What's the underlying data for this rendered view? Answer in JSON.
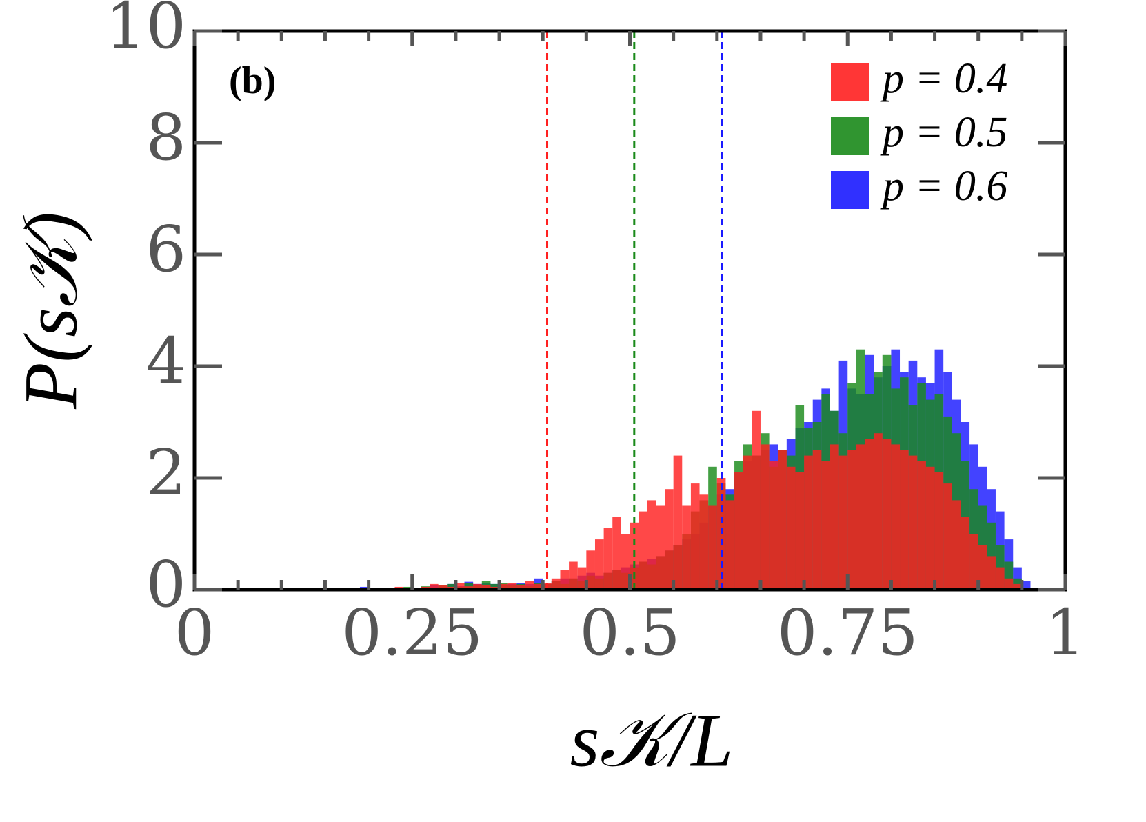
{
  "chart_data": {
    "type": "histogram",
    "annotation": "(b)",
    "xlabel": "s𝒦/L",
    "ylabel": "P(s𝒦)",
    "xlim": [
      0,
      1
    ],
    "ylim": [
      0,
      10
    ],
    "xticks": [
      0,
      0.25,
      0.5,
      0.75,
      1
    ],
    "xticks_minor": [
      0.05,
      0.1,
      0.15,
      0.2,
      0.3,
      0.35,
      0.4,
      0.45,
      0.55,
      0.6,
      0.65,
      0.7,
      0.8,
      0.85,
      0.9,
      0.95
    ],
    "yticks": [
      0,
      2,
      4,
      6,
      8,
      10
    ],
    "legend": "upper right",
    "bins": [
      0.15,
      0.16,
      0.17,
      0.18,
      0.19,
      0.2,
      0.21,
      0.22,
      0.23,
      0.24,
      0.25,
      0.26,
      0.27,
      0.28,
      0.29,
      0.3,
      0.31,
      0.32,
      0.33,
      0.34,
      0.35,
      0.36,
      0.37,
      0.38,
      0.39,
      0.4,
      0.41,
      0.42,
      0.43,
      0.44,
      0.45,
      0.46,
      0.47,
      0.48,
      0.49,
      0.5,
      0.51,
      0.52,
      0.53,
      0.54,
      0.55,
      0.56,
      0.57,
      0.58,
      0.59,
      0.6,
      0.61,
      0.62,
      0.63,
      0.64,
      0.65,
      0.66,
      0.67,
      0.68,
      0.69,
      0.7,
      0.71,
      0.72,
      0.73,
      0.74,
      0.75,
      0.76,
      0.77,
      0.78,
      0.79,
      0.8,
      0.81,
      0.82,
      0.83,
      0.84,
      0.85,
      0.86,
      0.87,
      0.88,
      0.89,
      0.9,
      0.91,
      0.92,
      0.93,
      0.94,
      0.95,
      0.96
    ],
    "series": [
      {
        "name": "p = 0.6",
        "color": "#1a1aff",
        "values": [
          0,
          0,
          0,
          0,
          0.05,
          0,
          0,
          0,
          0.02,
          0,
          0,
          0.04,
          0.08,
          0.05,
          0.1,
          0.06,
          0.14,
          0.1,
          0.12,
          0.1,
          0.08,
          0.1,
          0.12,
          0.1,
          0.2,
          0.1,
          0.15,
          0.2,
          0.2,
          0.25,
          0.3,
          0.25,
          0.3,
          0.35,
          0.4,
          0.45,
          0.5,
          0.55,
          0.6,
          0.7,
          0.8,
          0.9,
          1.0,
          1.2,
          1.5,
          1.7,
          1.8,
          2.1,
          2.3,
          2.4,
          2.5,
          2.6,
          2.5,
          2.7,
          2.9,
          3.0,
          3.4,
          3.6,
          3.2,
          4.1,
          3.6,
          3.5,
          4.2,
          3.8,
          4.0,
          4.3,
          3.9,
          4.1,
          3.8,
          3.7,
          4.3,
          3.9,
          3.4,
          3.0,
          2.6,
          2.2,
          1.8,
          1.4,
          0.9,
          0.4,
          0.15
        ]
      },
      {
        "name": "p = 0.5",
        "color": "#1a8a1a",
        "values": [
          0,
          0,
          0,
          0,
          0,
          0,
          0.02,
          0,
          0.03,
          0.05,
          0.02,
          0.06,
          0.04,
          0.08,
          0.1,
          0.05,
          0.12,
          0.08,
          0.15,
          0.1,
          0.12,
          0.08,
          0.1,
          0.06,
          0.12,
          0.1,
          0.15,
          0.1,
          0.2,
          0.15,
          0.25,
          0.2,
          0.3,
          0.35,
          0.3,
          0.4,
          0.5,
          0.45,
          0.6,
          0.7,
          0.8,
          1.0,
          1.4,
          1.6,
          2.2,
          1.9,
          1.7,
          2.3,
          2.6,
          2.4,
          2.8,
          2.2,
          2.5,
          2.4,
          3.3,
          2.9,
          3.0,
          3.5,
          3.2,
          2.8,
          3.7,
          4.3,
          3.5,
          3.9,
          4.2,
          3.6,
          3.8,
          3.3,
          3.7,
          3.4,
          3.5,
          3.1,
          2.8,
          2.3,
          1.8,
          1.5,
          1.2,
          0.8,
          0.5,
          0.2,
          0
        ]
      },
      {
        "name": "p = 0.4",
        "color": "#ff2020",
        "values": [
          0,
          0,
          0,
          0.02,
          0,
          0,
          0.03,
          0,
          0.05,
          0.02,
          0.03,
          0.05,
          0.1,
          0.08,
          0.05,
          0.12,
          0.06,
          0.1,
          0.08,
          0.05,
          0.1,
          0.12,
          0.08,
          0.15,
          0.1,
          0.12,
          0.2,
          0.35,
          0.5,
          0.4,
          0.7,
          0.9,
          1.1,
          1.3,
          1.0,
          1.2,
          1.4,
          1.6,
          1.5,
          1.8,
          2.4,
          1.5,
          1.9,
          1.7,
          1.5,
          2.0,
          1.6,
          2.1,
          2.4,
          3.2,
          2.6,
          2.3,
          2.5,
          2.2,
          2.1,
          2.4,
          2.5,
          2.3,
          2.6,
          2.4,
          2.5,
          2.6,
          2.7,
          2.8,
          2.7,
          2.6,
          2.5,
          2.4,
          2.3,
          2.2,
          2.1,
          1.9,
          1.6,
          1.3,
          1.0,
          0.8,
          0.6,
          0.4,
          0.2,
          0.1,
          0
        ]
      }
    ],
    "vlines": [
      {
        "x": 0.405,
        "color": "#ff2020"
      },
      {
        "x": 0.505,
        "color": "#1a8a1a"
      },
      {
        "x": 0.606,
        "color": "#1a1aff"
      }
    ]
  }
}
